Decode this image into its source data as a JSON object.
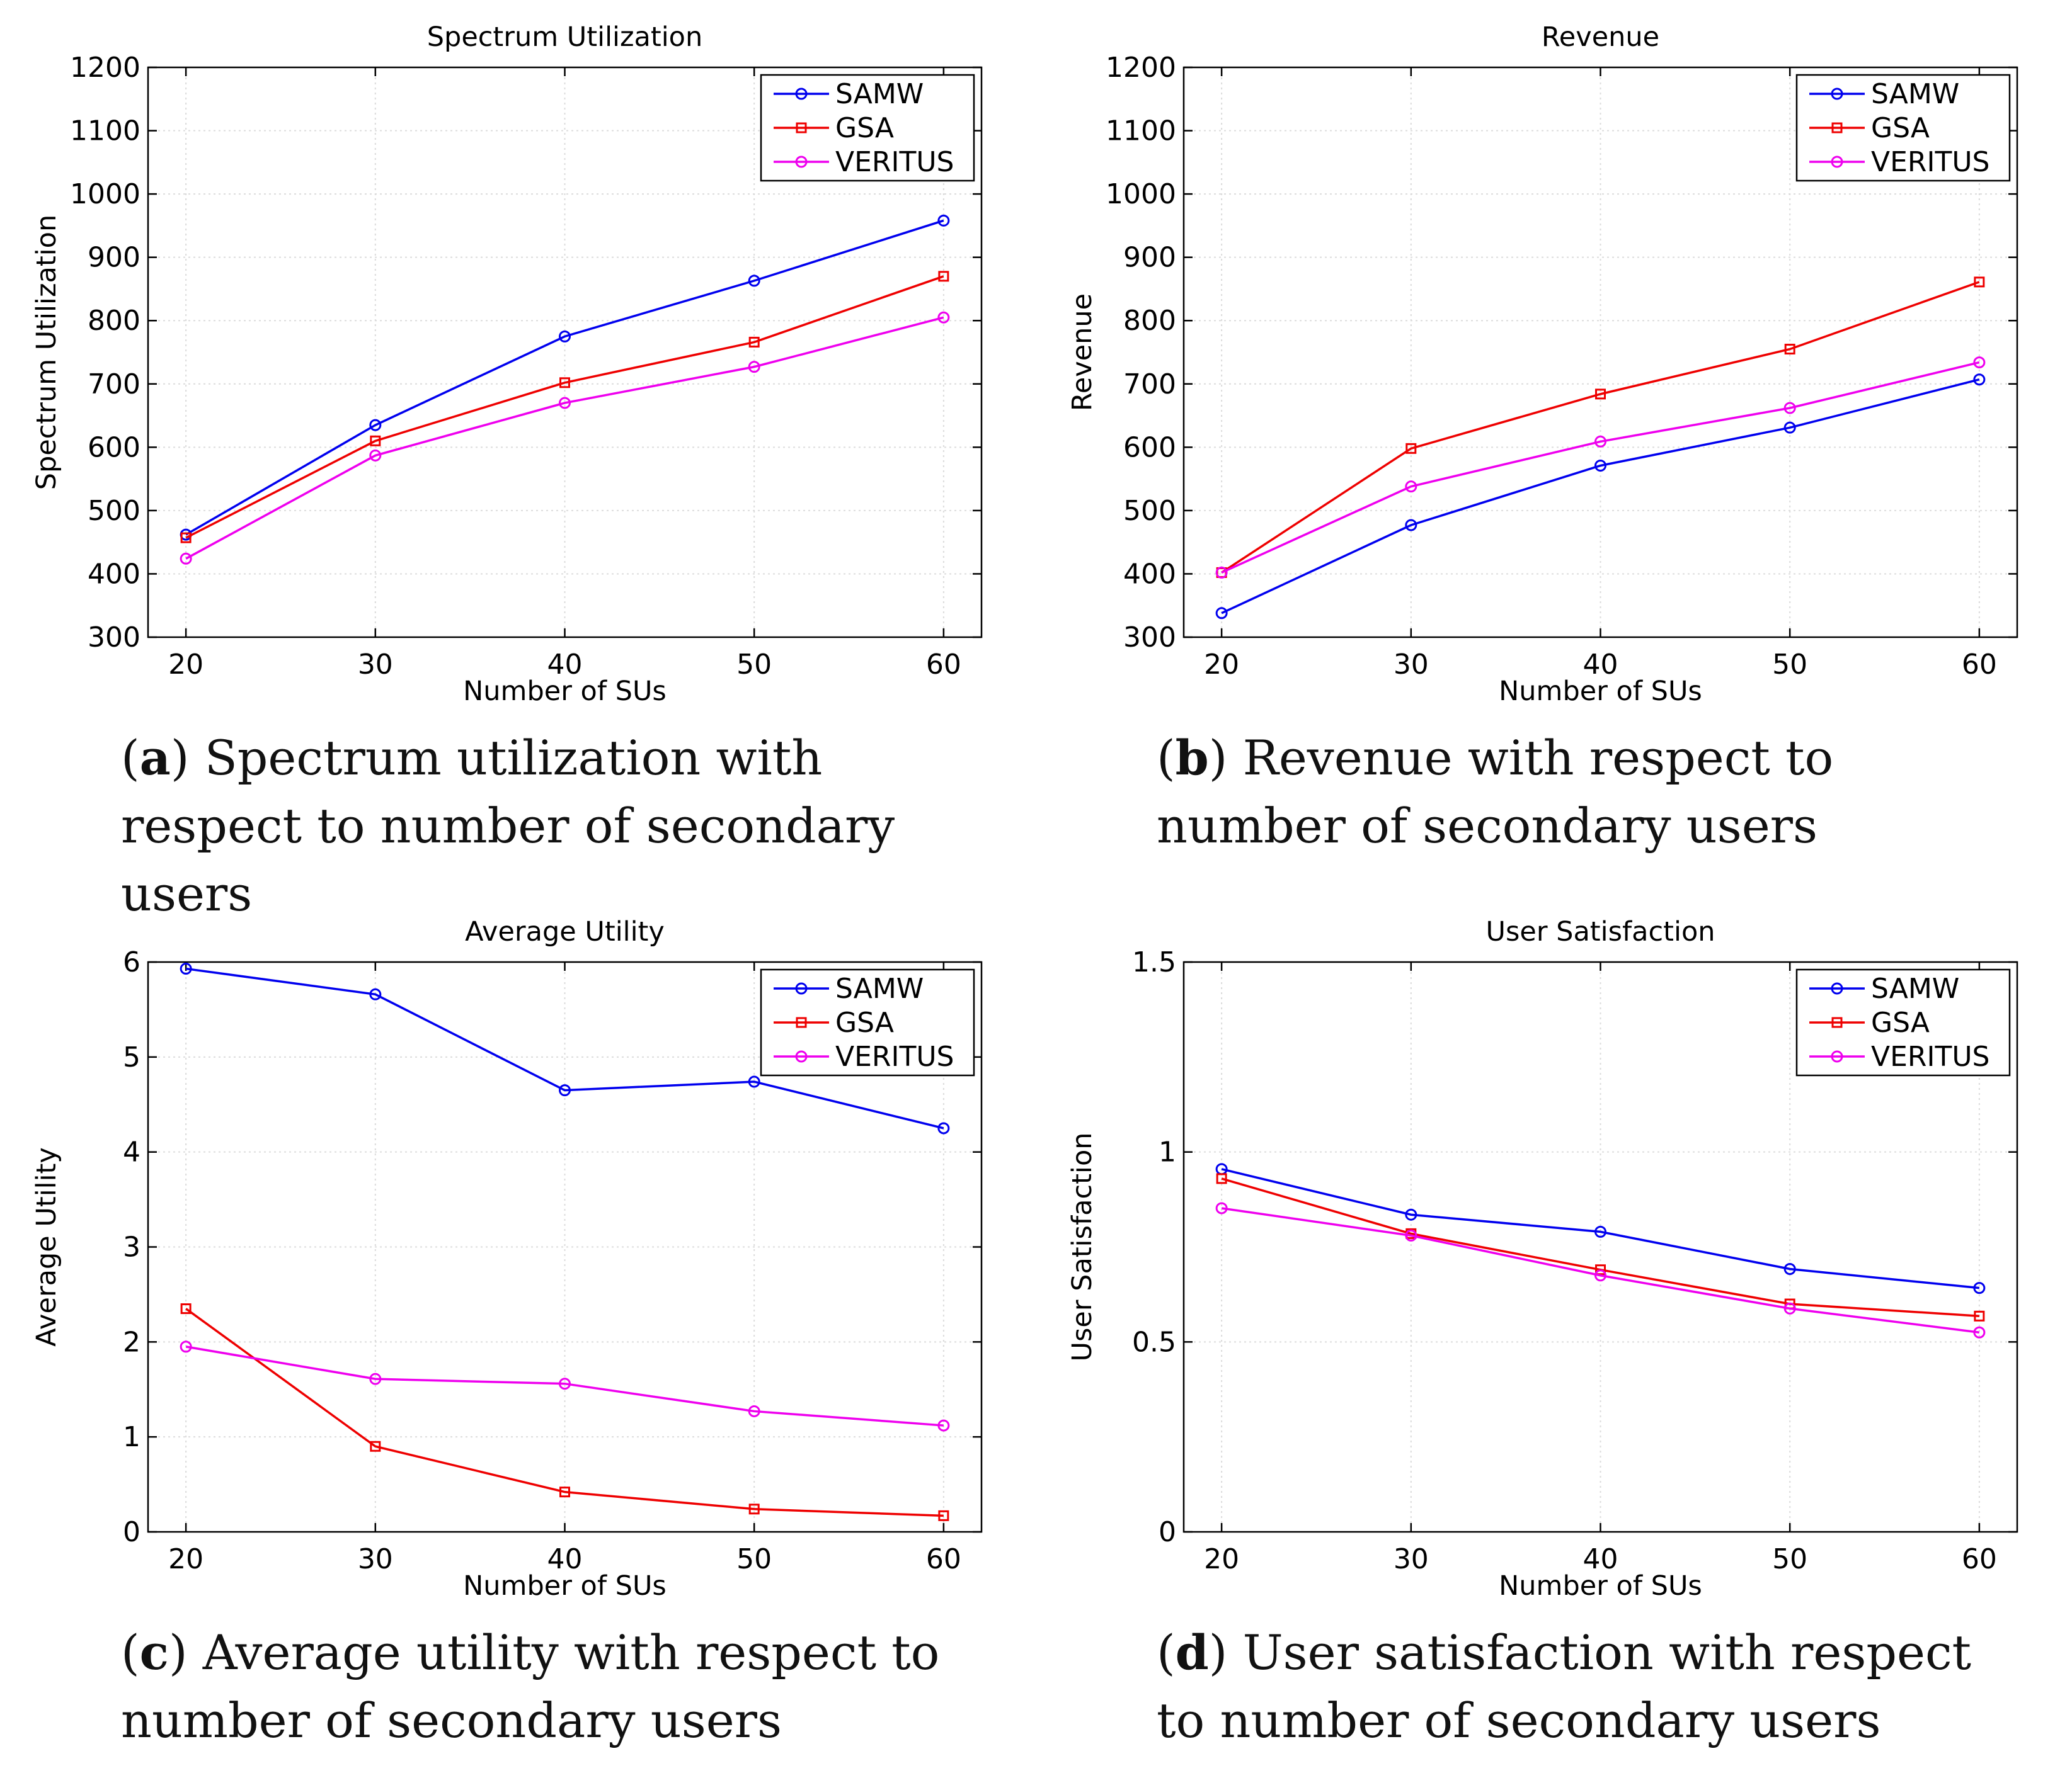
{
  "chart_data": [
    {
      "type": "line",
      "title": "Spectrum Utilization",
      "xlabel": "Number of SUs",
      "ylabel": "Spectrum Utilization",
      "x": [
        20,
        30,
        40,
        50,
        60
      ],
      "xlim": [
        18,
        62
      ],
      "ylim": [
        300,
        1200
      ],
      "yticks": [
        300,
        400,
        500,
        600,
        700,
        800,
        900,
        1000,
        1100,
        1200
      ],
      "ytick_labels": [
        "300",
        "400",
        "500",
        "600",
        "700",
        "800",
        "900",
        "1000",
        "1100",
        "1200"
      ],
      "xtick_labels": [
        "20",
        "30",
        "40",
        "50",
        "60"
      ],
      "grid": true,
      "legend_position": "top-right",
      "series": [
        {
          "name": "SAMW",
          "color": "#0000ee",
          "marker": "circle",
          "values": [
            462,
            635,
            775,
            863,
            958
          ]
        },
        {
          "name": "GSA",
          "color": "#ee0000",
          "marker": "square",
          "values": [
            457,
            610,
            702,
            766,
            870
          ]
        },
        {
          "name": "VERITUS",
          "color": "#ee00ee",
          "marker": "circle",
          "values": [
            424,
            587,
            670,
            727,
            805
          ]
        }
      ],
      "caption": {
        "letter": "a",
        "text": "Spectrum utilization with respect to number of secondary users"
      }
    },
    {
      "type": "line",
      "title": "Revenue",
      "xlabel": "Number of SUs",
      "ylabel": "Revenue",
      "x": [
        20,
        30,
        40,
        50,
        60
      ],
      "xlim": [
        18,
        62
      ],
      "ylim": [
        300,
        1200
      ],
      "yticks": [
        300,
        400,
        500,
        600,
        700,
        800,
        900,
        1000,
        1100,
        1200
      ],
      "ytick_labels": [
        "300",
        "400",
        "500",
        "600",
        "700",
        "800",
        "900",
        "1000",
        "1100",
        "1200"
      ],
      "xtick_labels": [
        "20",
        "30",
        "40",
        "50",
        "60"
      ],
      "grid": true,
      "legend_position": "top-right",
      "series": [
        {
          "name": "SAMW",
          "color": "#0000ee",
          "marker": "circle",
          "values": [
            338,
            477,
            571,
            631,
            707
          ]
        },
        {
          "name": "GSA",
          "color": "#ee0000",
          "marker": "square",
          "values": [
            402,
            598,
            684,
            755,
            861
          ]
        },
        {
          "name": "VERITUS",
          "color": "#ee00ee",
          "marker": "circle",
          "values": [
            402,
            538,
            609,
            662,
            734
          ]
        }
      ],
      "caption": {
        "letter": "b",
        "text": "Revenue with respect to number of secondary users"
      }
    },
    {
      "type": "line",
      "title": "Average Utility",
      "xlabel": "Number of SUs",
      "ylabel": "Average Utility",
      "x": [
        20,
        30,
        40,
        50,
        60
      ],
      "xlim": [
        18,
        62
      ],
      "ylim": [
        0,
        6
      ],
      "yticks": [
        0,
        1,
        2,
        3,
        4,
        5,
        6
      ],
      "ytick_labels": [
        "0",
        "1",
        "2",
        "3",
        "4",
        "5",
        "6"
      ],
      "xtick_labels": [
        "20",
        "30",
        "40",
        "50",
        "60"
      ],
      "grid": true,
      "legend_position": "top-right",
      "series": [
        {
          "name": "SAMW",
          "color": "#0000ee",
          "marker": "circle",
          "values": [
            5.93,
            5.66,
            4.65,
            4.74,
            4.25
          ]
        },
        {
          "name": "GSA",
          "color": "#ee0000",
          "marker": "square",
          "values": [
            2.35,
            0.9,
            0.42,
            0.24,
            0.17
          ]
        },
        {
          "name": "VERITUS",
          "color": "#ee00ee",
          "marker": "circle",
          "values": [
            1.95,
            1.61,
            1.56,
            1.27,
            1.12
          ]
        }
      ],
      "caption": {
        "letter": "c",
        "text": "Average utility with respect to number of secondary users"
      }
    },
    {
      "type": "line",
      "title": "User Satisfaction",
      "xlabel": "Number of SUs",
      "ylabel": "User Satisfaction",
      "x": [
        20,
        30,
        40,
        50,
        60
      ],
      "xlim": [
        18,
        62
      ],
      "ylim": [
        0,
        1.5
      ],
      "yticks": [
        0,
        0.5,
        1,
        1.5
      ],
      "ytick_labels": [
        "0",
        "0.5",
        "1",
        "1.5"
      ],
      "xtick_labels": [
        "20",
        "30",
        "40",
        "50",
        "60"
      ],
      "grid": true,
      "legend_position": "top-right",
      "series": [
        {
          "name": "SAMW",
          "color": "#0000ee",
          "marker": "circle",
          "values": [
            0.955,
            0.835,
            0.79,
            0.692,
            0.642
          ]
        },
        {
          "name": "GSA",
          "color": "#ee0000",
          "marker": "square",
          "values": [
            0.93,
            0.785,
            0.69,
            0.6,
            0.568
          ]
        },
        {
          "name": "VERITUS",
          "color": "#ee00ee",
          "marker": "circle",
          "values": [
            0.852,
            0.78,
            0.675,
            0.588,
            0.525
          ]
        }
      ],
      "caption": {
        "letter": "d",
        "text": "User satisfaction with respect to number of secondary users"
      }
    }
  ]
}
